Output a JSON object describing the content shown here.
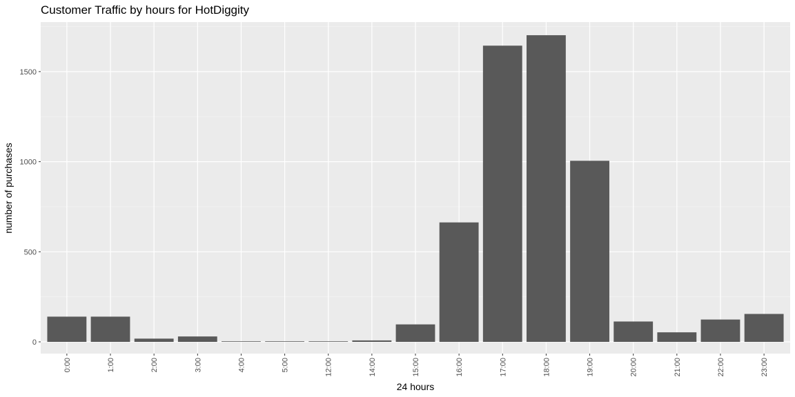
{
  "chart_data": {
    "type": "bar",
    "title": "Customer Traffic by hours for HotDiggity",
    "xlabel": "24 hours",
    "ylabel": "number of purchases",
    "categories": [
      "0:00",
      "1:00",
      "2:00",
      "3:00",
      "4:00",
      "5:00",
      "12:00",
      "14:00",
      "15:00",
      "16:00",
      "17:00",
      "18:00",
      "19:00",
      "20:00",
      "21:00",
      "22:00",
      "23:00"
    ],
    "values": [
      140,
      140,
      18,
      30,
      3,
      2,
      2,
      8,
      97,
      663,
      1644,
      1702,
      1005,
      113,
      53,
      124,
      155
    ],
    "yticks": [
      0,
      500,
      1000,
      1500
    ],
    "ylim": [
      -65,
      1775
    ],
    "grid": true,
    "colors": {
      "bar": "#595959",
      "panel": "#ebebeb",
      "grid_major": "#ffffff",
      "grid_minor": "#f5f5f5",
      "tick": "#333333",
      "tick_label": "#4d4d4d"
    }
  }
}
